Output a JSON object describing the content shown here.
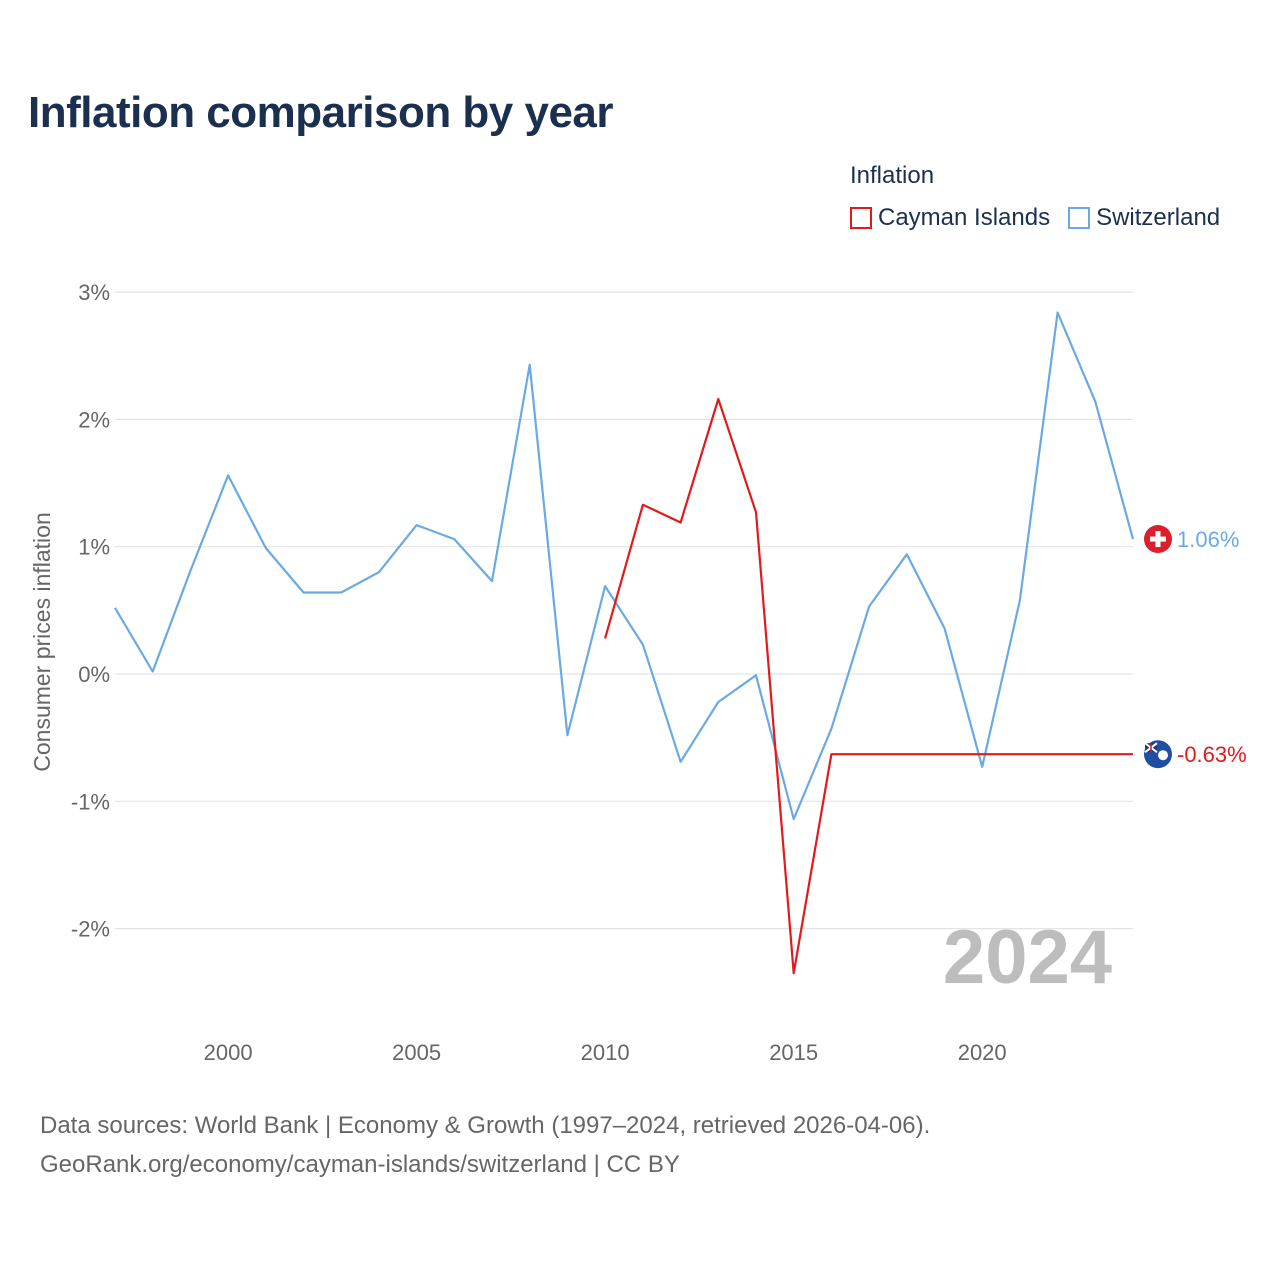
{
  "title": "Inflation comparison by year",
  "legend": {
    "title": "Inflation",
    "items": [
      {
        "label": "Cayman Islands",
        "color": "#e31a1c"
      },
      {
        "label": "Switzerland",
        "color": "#6aaae4"
      }
    ]
  },
  "footer": {
    "line1": "Data sources: World Bank | Economy & Growth (1997–2024, retrieved 2026-04-06).",
    "line2": "GeoRank.org/economy/cayman-islands/switzerland | CC BY"
  },
  "chart_data": {
    "type": "line",
    "title": "Inflation comparison by year",
    "xlabel": "",
    "ylabel": "Consumer prices inflation",
    "xlim": [
      1997,
      2024
    ],
    "ylim": [
      -2.5,
      3
    ],
    "grid": true,
    "watermark_year": "2024",
    "x_ticks": [
      2000,
      2005,
      2010,
      2015,
      2020
    ],
    "y_ticks": [
      {
        "value": 3,
        "label": "3%"
      },
      {
        "value": 2,
        "label": "2%"
      },
      {
        "value": 1,
        "label": "1%"
      },
      {
        "value": 0,
        "label": "0%"
      },
      {
        "value": -1,
        "label": "-1%"
      },
      {
        "value": -2,
        "label": "-2%"
      }
    ],
    "series": [
      {
        "name": "Switzerland",
        "color": "#6aaae4",
        "end_label": "1.06%",
        "end_value": 1.06,
        "flag": "switzerland-flag",
        "x": [
          1997,
          1998,
          1999,
          2000,
          2001,
          2002,
          2003,
          2004,
          2005,
          2006,
          2007,
          2008,
          2009,
          2010,
          2011,
          2012,
          2013,
          2014,
          2015,
          2016,
          2017,
          2018,
          2019,
          2020,
          2021,
          2022,
          2023,
          2024
        ],
        "values": [
          0.52,
          0.02,
          0.81,
          1.56,
          0.99,
          0.64,
          0.64,
          0.8,
          1.17,
          1.06,
          0.73,
          2.43,
          -0.48,
          0.69,
          0.23,
          -0.69,
          -0.22,
          -0.01,
          -1.14,
          -0.43,
          0.53,
          0.94,
          0.36,
          -0.73,
          0.58,
          2.84,
          2.14,
          1.06
        ]
      },
      {
        "name": "Cayman Islands",
        "color": "#e31a1c",
        "end_label": "-0.63%",
        "end_value": -0.63,
        "flag": "cayman-islands-flag",
        "x": [
          2010,
          2011,
          2012,
          2013,
          2014,
          2015,
          2016,
          2024
        ],
        "values": [
          0.28,
          1.33,
          1.19,
          2.16,
          1.27,
          -2.35,
          -0.63,
          -0.63
        ]
      }
    ]
  }
}
